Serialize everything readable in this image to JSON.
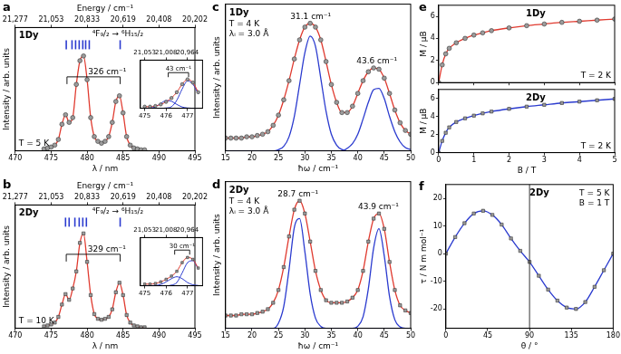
{
  "chart_data": [
    {
      "panel_label": "a",
      "type": "line",
      "grid": false,
      "tick_labels": "x",
      "xlabel": "λ / nm",
      "ylabel": "Intensity / arb. units",
      "x2label": "Energy / cm⁻¹",
      "xlim": [
        470,
        495
      ],
      "xticks": [
        470,
        475,
        480,
        485,
        490,
        495
      ],
      "x2lim": [
        470,
        495
      ],
      "x2ticks": [
        {
          "value": 470,
          "label": "21,277"
        },
        {
          "value": 475,
          "label": "21,053"
        },
        {
          "value": 480,
          "label": "20,833"
        },
        {
          "value": 485,
          "label": "20,619"
        },
        {
          "value": 490,
          "label": "20,408"
        },
        {
          "value": 495,
          "label": "20,202"
        }
      ],
      "ylim": [
        0,
        1.3
      ],
      "x": [
        474,
        474.5,
        475,
        475.5,
        476,
        476.5,
        477,
        477.5,
        478,
        478.5,
        479,
        479.5,
        480,
        480.5,
        481,
        481.5,
        482,
        482.5,
        483,
        483.5,
        484,
        484.5,
        485,
        485.5,
        486,
        486.5,
        487,
        487.5,
        488
      ],
      "series": [
        {
          "color": "#e03a2f",
          "marker": "circle",
          "values": [
            0.02,
            0.03,
            0.04,
            0.06,
            0.12,
            0.28,
            0.38,
            0.3,
            0.35,
            0.7,
            0.95,
            1.0,
            0.75,
            0.35,
            0.15,
            0.1,
            0.08,
            0.1,
            0.15,
            0.3,
            0.52,
            0.58,
            0.4,
            0.15,
            0.06,
            0.03,
            0.02,
            0.01,
            0.01
          ]
        }
      ],
      "levels": {
        "color": "#2b3bcf",
        "x": [
          477.1,
          477.9,
          478.4,
          478.9,
          479.4,
          479.8,
          480.3,
          484.6
        ]
      },
      "splitting": {
        "text": "326 cm⁻¹",
        "x": [
          477.2,
          484.6
        ]
      },
      "annotations": {
        "sample": "1Dy",
        "transition": "⁴F₉/₂ → ⁶H₁₅/₂",
        "conditions": [
          "T = 5 K"
        ]
      },
      "inset": {
        "type": "line",
        "grid": false,
        "tick_labels": "x",
        "xlim": [
          474.8,
          477.7
        ],
        "xticks": [
          475,
          476,
          477
        ],
        "x2lim": [
          474.8,
          477.7
        ],
        "x2ticks": [
          {
            "value": 475,
            "label": "21,053"
          },
          {
            "value": 476,
            "label": "21,008"
          },
          {
            "value": 477,
            "label": "20,964"
          }
        ],
        "ylim": [
          0,
          1.5
        ],
        "x": [
          475,
          475.25,
          475.5,
          475.75,
          476,
          476.25,
          476.5,
          476.75,
          477,
          477.25,
          477.5
        ],
        "series": [
          {
            "color": "#e03a2f",
            "marker": "circle",
            "values": [
              0.05,
              0.05,
              0.07,
              0.12,
              0.2,
              0.32,
              0.5,
              0.75,
              0.9,
              0.8,
              0.5
            ]
          },
          {
            "color": "#2b3bcf",
            "values": [
              0,
              0.01,
              0.05,
              0.15,
              0.24,
              0.22,
              0.12,
              0.04,
              0.01,
              0,
              0
            ]
          },
          {
            "color": "#2b3bcf",
            "values": [
              0,
              0,
              0,
              0,
              0.01,
              0.05,
              0.25,
              0.6,
              0.85,
              0.75,
              0.45
            ]
          }
        ],
        "splitting": {
          "text": "43 cm⁻¹",
          "x": [
            476.1,
            477.05
          ]
        }
      }
    },
    {
      "panel_label": "b",
      "type": "line",
      "grid": false,
      "tick_labels": "x",
      "xlabel": "λ / nm",
      "ylabel": "Intensity / arb. units",
      "x2label": "Energy / cm⁻¹",
      "xlim": [
        470,
        495
      ],
      "xticks": [
        470,
        475,
        480,
        485,
        490,
        495
      ],
      "x2lim": [
        470,
        495
      ],
      "x2ticks": [
        {
          "value": 470,
          "label": "21,277"
        },
        {
          "value": 475,
          "label": "21,053"
        },
        {
          "value": 480,
          "label": "20,833"
        },
        {
          "value": 485,
          "label": "20,619"
        },
        {
          "value": 490,
          "label": "20,408"
        },
        {
          "value": 495,
          "label": "20,202"
        }
      ],
      "ylim": [
        0,
        1.3
      ],
      "x": [
        474,
        474.5,
        475,
        475.5,
        476,
        476.5,
        477,
        477.5,
        478,
        478.5,
        479,
        479.5,
        480,
        480.5,
        481,
        481.5,
        482,
        482.5,
        483,
        483.5,
        484,
        484.5,
        485,
        485.5,
        486,
        486.5,
        487,
        487.5,
        488
      ],
      "series": [
        {
          "color": "#e03a2f",
          "marker": "square",
          "values": [
            0.02,
            0.03,
            0.04,
            0.06,
            0.12,
            0.25,
            0.36,
            0.3,
            0.42,
            0.6,
            0.9,
            1.0,
            0.7,
            0.35,
            0.15,
            0.1,
            0.09,
            0.1,
            0.12,
            0.2,
            0.38,
            0.48,
            0.35,
            0.14,
            0.06,
            0.03,
            0.02,
            0.01,
            0.01
          ]
        }
      ],
      "levels": {
        "color": "#2b3bcf",
        "x": [
          477.0,
          477.5,
          478.3,
          478.9,
          479.4,
          479.9,
          484.6
        ]
      },
      "splitting": {
        "text": "329 cm⁻¹",
        "x": [
          477.1,
          484.6
        ]
      },
      "annotations": {
        "sample": "2Dy",
        "transition": "⁴F₉/₂ → ⁶H₁₅/₂",
        "conditions": [
          "T = 10 K"
        ]
      },
      "inset": {
        "type": "line",
        "grid": false,
        "tick_labels": "x",
        "xlim": [
          474.8,
          477.7
        ],
        "xticks": [
          475,
          476,
          477
        ],
        "x2lim": [
          474.8,
          477.7
        ],
        "x2ticks": [
          {
            "value": 475,
            "label": "21,053"
          },
          {
            "value": 476,
            "label": "21,008"
          },
          {
            "value": 477,
            "label": "20,964"
          }
        ],
        "ylim": [
          0,
          1.5
        ],
        "x": [
          475,
          475.25,
          475.5,
          475.75,
          476,
          476.25,
          476.5,
          476.75,
          477,
          477.25,
          477.5
        ],
        "series": [
          {
            "color": "#e03a2f",
            "marker": "square",
            "values": [
              0.05,
              0.05,
              0.07,
              0.12,
              0.2,
              0.3,
              0.45,
              0.72,
              0.88,
              0.82,
              0.55
            ]
          },
          {
            "color": "#2b3bcf",
            "values": [
              0,
              0,
              0.01,
              0.04,
              0.12,
              0.22,
              0.28,
              0.22,
              0.1,
              0.03,
              0.01
            ]
          },
          {
            "color": "#2b3bcf",
            "values": [
              0,
              0,
              0,
              0,
              0,
              0.02,
              0.1,
              0.4,
              0.72,
              0.78,
              0.52
            ]
          }
        ],
        "splitting": {
          "text": "30 cm⁻¹",
          "x": [
            476.4,
            477.1
          ]
        }
      }
    },
    {
      "panel_label": "c",
      "type": "line",
      "grid": false,
      "tick_labels": "x",
      "xlabel": "ħω / cm⁻¹",
      "ylabel": "Intensity / arb. units",
      "xlim": [
        15,
        50
      ],
      "xticks": [
        15,
        20,
        25,
        30,
        35,
        40,
        45,
        50
      ],
      "ylim": [
        0,
        1.15
      ],
      "x": [
        15,
        16,
        17,
        18,
        19,
        20,
        21,
        22,
        23,
        24,
        25,
        26,
        27,
        28,
        29,
        30,
        31,
        32,
        33,
        34,
        35,
        36,
        37,
        38,
        39,
        40,
        41,
        42,
        43,
        44,
        45,
        46,
        47,
        48,
        49,
        50
      ],
      "series": [
        {
          "color": "#e03a2f",
          "marker": "circle",
          "values": [
            0.1,
            0.1,
            0.1,
            0.1,
            0.11,
            0.11,
            0.12,
            0.13,
            0.15,
            0.2,
            0.28,
            0.4,
            0.55,
            0.72,
            0.87,
            0.97,
            1.0,
            0.97,
            0.87,
            0.7,
            0.52,
            0.38,
            0.3,
            0.3,
            0.35,
            0.45,
            0.55,
            0.62,
            0.65,
            0.64,
            0.57,
            0.45,
            0.32,
            0.22,
            0.16,
            0.13
          ]
        },
        {
          "color": "#2b3bcf",
          "values": [
            0,
            0,
            0,
            0,
            0,
            0,
            0,
            0,
            0,
            0,
            0.009,
            0.035,
            0.11,
            0.27,
            0.52,
            0.77,
            0.9,
            0.82,
            0.57,
            0.31,
            0.13,
            0.045,
            0.01,
            0,
            0,
            0,
            0,
            0,
            0,
            0,
            0,
            0,
            0,
            0,
            0,
            0
          ]
        },
        {
          "color": "#2b3bcf",
          "values": [
            0,
            0,
            0,
            0,
            0,
            0,
            0,
            0,
            0,
            0,
            0,
            0,
            0,
            0,
            0,
            0,
            0,
            0,
            0,
            0,
            0,
            0,
            0,
            0.02,
            0.056,
            0.13,
            0.25,
            0.38,
            0.48,
            0.49,
            0.41,
            0.27,
            0.15,
            0.07,
            0.025,
            0.01
          ]
        }
      ],
      "peak_labels": [
        {
          "text": "31.1 cm⁻¹",
          "x": 31.1
        },
        {
          "text": "43.6 cm⁻¹",
          "x": 43.6
        }
      ],
      "annotations": {
        "sample": "1Dy",
        "conditions": [
          "T = 4 K",
          "λᵢ = 3.0 Å"
        ]
      }
    },
    {
      "panel_label": "d",
      "type": "line",
      "grid": false,
      "tick_labels": "x",
      "xlabel": "ħω / cm⁻¹",
      "ylabel": "Intensity / arb. units",
      "xlim": [
        15,
        50
      ],
      "xticks": [
        15,
        20,
        25,
        30,
        35,
        40,
        45,
        50
      ],
      "ylim": [
        0,
        1.15
      ],
      "x": [
        15,
        16,
        17,
        18,
        19,
        20,
        21,
        22,
        23,
        24,
        25,
        26,
        27,
        28,
        29,
        30,
        31,
        32,
        33,
        34,
        35,
        36,
        37,
        38,
        39,
        40,
        41,
        42,
        43,
        44,
        45,
        46,
        47,
        48,
        49,
        50
      ],
      "series": [
        {
          "color": "#e03a2f",
          "marker": "square",
          "values": [
            0.1,
            0.1,
            0.1,
            0.11,
            0.11,
            0.11,
            0.12,
            0.13,
            0.15,
            0.2,
            0.3,
            0.48,
            0.72,
            0.93,
            1.0,
            0.9,
            0.68,
            0.45,
            0.3,
            0.22,
            0.2,
            0.2,
            0.2,
            0.21,
            0.24,
            0.3,
            0.45,
            0.68,
            0.86,
            0.9,
            0.78,
            0.52,
            0.3,
            0.18,
            0.14,
            0.12
          ]
        },
        {
          "color": "#2b3bcf",
          "values": [
            0,
            0,
            0,
            0,
            0,
            0,
            0,
            0,
            0,
            0,
            0.04,
            0.17,
            0.46,
            0.79,
            0.86,
            0.6,
            0.27,
            0.08,
            0.015,
            0,
            0,
            0,
            0,
            0,
            0,
            0,
            0,
            0,
            0,
            0,
            0,
            0,
            0,
            0,
            0,
            0
          ]
        },
        {
          "color": "#2b3bcf",
          "values": [
            0,
            0,
            0,
            0,
            0,
            0,
            0,
            0,
            0,
            0,
            0,
            0,
            0,
            0,
            0,
            0,
            0,
            0,
            0,
            0,
            0,
            0,
            0,
            0,
            0,
            0.016,
            0.09,
            0.31,
            0.63,
            0.78,
            0.57,
            0.25,
            0.067,
            0.011,
            0,
            0
          ]
        }
      ],
      "peak_labels": [
        {
          "text": "28.7 cm⁻¹",
          "x": 28.7
        },
        {
          "text": "43.9 cm⁻¹",
          "x": 43.9
        }
      ],
      "annotations": {
        "sample": "2Dy",
        "conditions": [
          "T = 4 K",
          "λᵢ = 3.0 Å"
        ]
      }
    },
    {
      "panel_label": "e",
      "type": "line",
      "grid": false,
      "tick_labels": "y",
      "ylabel": "M / μB",
      "xlim": [
        0,
        5
      ],
      "xticks": [
        0,
        1,
        2,
        3,
        4,
        5
      ],
      "ylim": [
        0,
        7
      ],
      "yticks": [
        0,
        2,
        4,
        6
      ],
      "x": [
        0,
        0.1,
        0.2,
        0.3,
        0.5,
        0.75,
        1,
        1.25,
        1.5,
        2,
        2.5,
        3,
        3.5,
        4,
        4.5,
        5
      ],
      "series": [
        {
          "color": "#e03a2f",
          "marker": "circle",
          "values": [
            0,
            1.6,
            2.6,
            3.1,
            3.6,
            4.0,
            4.3,
            4.5,
            4.7,
            4.95,
            5.15,
            5.3,
            5.45,
            5.55,
            5.65,
            5.75
          ]
        }
      ],
      "annotations": {
        "sample": "1Dy",
        "conditions": [
          "T = 2 K"
        ]
      }
    },
    {
      "type": "line",
      "grid": false,
      "xlabel": "B / T",
      "ylabel": "M / μB",
      "xlim": [
        0,
        5
      ],
      "xticks": [
        0,
        1,
        2,
        3,
        4,
        5
      ],
      "ylim": [
        0,
        7
      ],
      "yticks": [
        0,
        2,
        4,
        6
      ],
      "x": [
        0,
        0.1,
        0.2,
        0.3,
        0.5,
        0.75,
        1,
        1.25,
        1.5,
        2,
        2.5,
        3,
        3.5,
        4,
        4.5,
        5
      ],
      "series": [
        {
          "color": "#2b3bcf",
          "marker": "square",
          "values": [
            0,
            1.3,
            2.2,
            2.8,
            3.4,
            3.8,
            4.1,
            4.35,
            4.55,
            4.85,
            5.1,
            5.3,
            5.5,
            5.65,
            5.8,
            5.95
          ]
        }
      ],
      "annotations": {
        "sample": "2Dy",
        "conditions": [
          "T = 2 K"
        ]
      }
    },
    {
      "panel_label": "f",
      "type": "line",
      "grid": false,
      "xlabel": "θ / °",
      "ylabel": "τ / N m mol⁻¹",
      "xlim": [
        0,
        180
      ],
      "xticks": [
        0,
        45,
        90,
        135,
        180
      ],
      "ylim": [
        -27,
        25
      ],
      "yticks": [
        -20,
        -10,
        0,
        10,
        20
      ],
      "reference_lines": [
        {
          "x": 90
        }
      ],
      "x": [
        0,
        10,
        20,
        30,
        40,
        50,
        60,
        70,
        80,
        90,
        100,
        110,
        120,
        130,
        140,
        150,
        160,
        170,
        180
      ],
      "series": [
        {
          "color": "#2b3bcf",
          "marker": "square",
          "values": [
            0,
            6,
            11,
            14.5,
            15.5,
            14,
            10.5,
            5.5,
            1,
            -3,
            -8,
            -13,
            -17,
            -19.5,
            -20,
            -17.5,
            -12,
            -6,
            0
          ]
        }
      ],
      "annotations": {
        "sample": "2Dy",
        "conditions": [
          "T = 5 K",
          "B = 1 T"
        ]
      }
    }
  ]
}
